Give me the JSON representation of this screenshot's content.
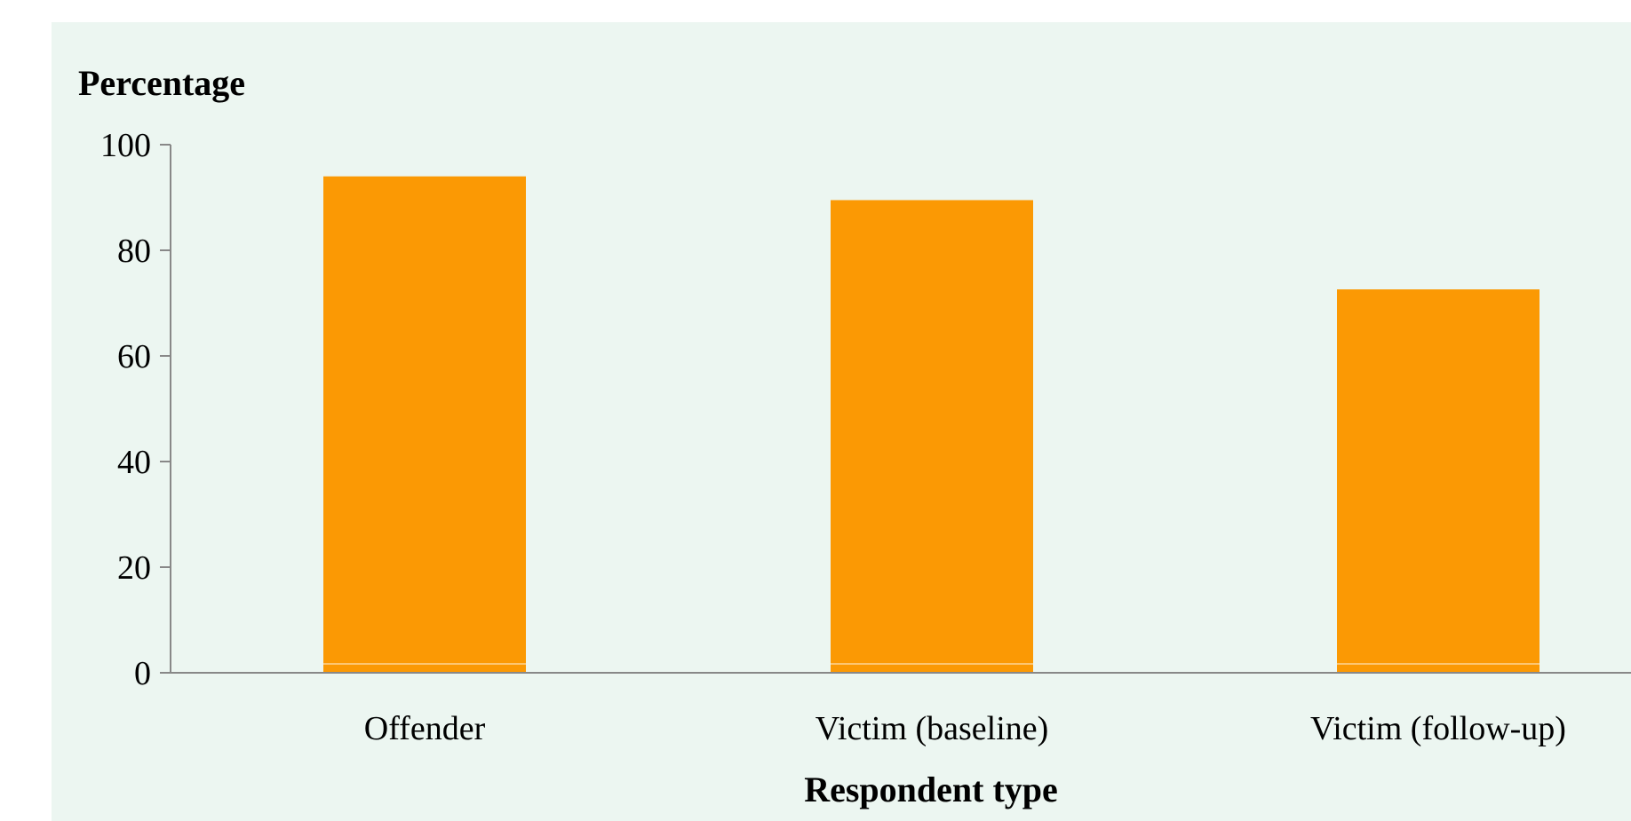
{
  "chart_data": {
    "type": "bar",
    "title": "",
    "ylabel": "Percentage",
    "xlabel": "Respondent type",
    "categories": [
      "Offender",
      "Victim (baseline)",
      "Victim (follow-up)"
    ],
    "values": [
      94,
      89.5,
      72.6
    ],
    "ylim": [
      0,
      100
    ],
    "yticks": [
      "0",
      "20",
      "40",
      "60",
      "80",
      "100"
    ],
    "ytick_values": [
      0,
      20,
      40,
      60,
      80,
      100
    ],
    "grid": false,
    "colors": {
      "bar": "#fb9904",
      "background": "#ecf6f1",
      "axis": "#888888"
    }
  }
}
